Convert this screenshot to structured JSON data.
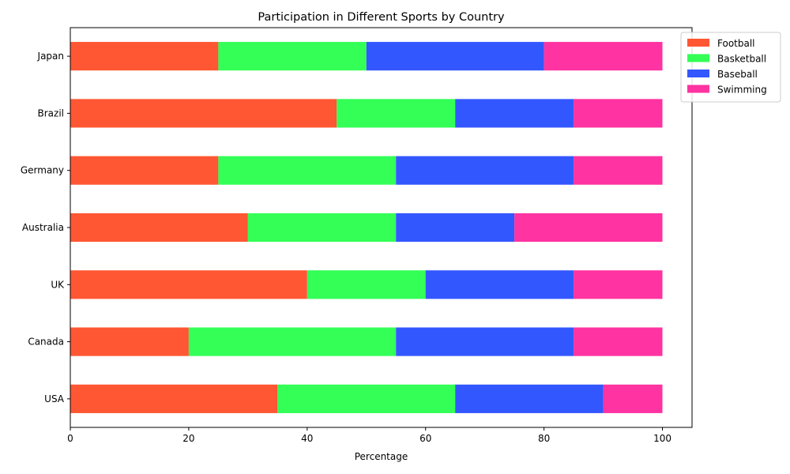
{
  "chart_data": {
    "type": "bar",
    "orientation": "horizontal",
    "stacked": true,
    "title": "Participation in Different Sports by Country",
    "xlabel": "Percentage",
    "ylabel": "",
    "xlim": [
      0,
      105
    ],
    "xticks": [
      0,
      20,
      40,
      60,
      80,
      100
    ],
    "grid": false,
    "legend_position": "top-right",
    "categories": [
      "USA",
      "Canada",
      "UK",
      "Australia",
      "Germany",
      "Brazil",
      "Japan"
    ],
    "series": [
      {
        "name": "Football",
        "color": "#ff5733",
        "values": [
          35,
          20,
          40,
          30,
          25,
          45,
          25
        ]
      },
      {
        "name": "Basketball",
        "color": "#33ff57",
        "values": [
          30,
          35,
          20,
          25,
          30,
          20,
          25
        ]
      },
      {
        "name": "Baseball",
        "color": "#3357ff",
        "values": [
          25,
          30,
          25,
          20,
          30,
          20,
          30
        ]
      },
      {
        "name": "Swimming",
        "color": "#ff33a1",
        "values": [
          10,
          15,
          15,
          25,
          15,
          15,
          20
        ]
      }
    ]
  }
}
